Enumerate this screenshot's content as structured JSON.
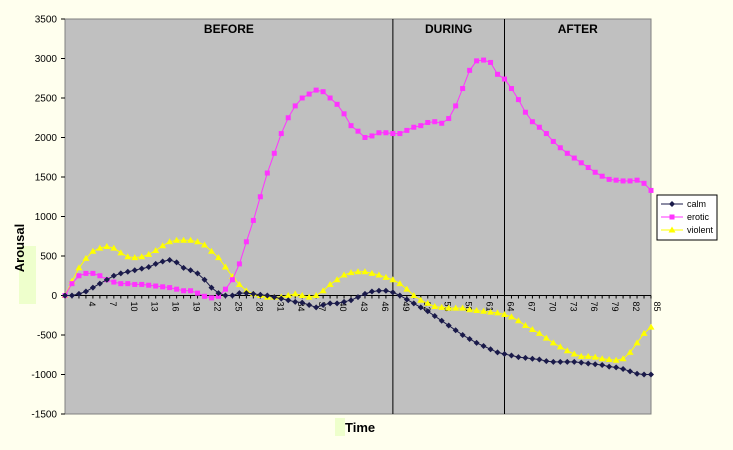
{
  "chart_data": {
    "type": "line",
    "xlabel": "Time",
    "ylabel": "Arousal",
    "ylim": [
      -1500,
      3500
    ],
    "yticks": [
      -1500,
      -1000,
      -500,
      0,
      500,
      1000,
      1500,
      2000,
      2500,
      3000,
      3500
    ],
    "x_range": [
      1,
      85
    ],
    "xticks": [
      4,
      7,
      10,
      13,
      16,
      19,
      22,
      25,
      28,
      31,
      34,
      37,
      40,
      43,
      46,
      49,
      52,
      55,
      58,
      61,
      64,
      67,
      70,
      73,
      76,
      79,
      82,
      85
    ],
    "grid": false,
    "plot_background": "#c0c0c0",
    "legend_position": "right",
    "phases": [
      {
        "label": "BEFORE",
        "start": 1,
        "end": 48
      },
      {
        "label": "DURING",
        "start": 48,
        "end": 64
      },
      {
        "label": "AFTER",
        "start": 64,
        "end": 85
      }
    ],
    "series": [
      {
        "name": "calm",
        "color": "#1a1a4a",
        "marker": "diamond",
        "x": [
          1,
          2,
          3,
          4,
          5,
          6,
          7,
          8,
          9,
          10,
          11,
          12,
          13,
          14,
          15,
          16,
          17,
          18,
          19,
          20,
          21,
          22,
          23,
          24,
          25,
          26,
          27,
          28,
          29,
          30,
          31,
          32,
          33,
          34,
          35,
          36,
          37,
          38,
          39,
          40,
          41,
          42,
          43,
          44,
          45,
          46,
          47,
          48,
          49,
          50,
          51,
          52,
          53,
          54,
          55,
          56,
          57,
          58,
          59,
          60,
          61,
          62,
          63,
          64,
          65,
          66,
          67,
          68,
          69,
          70,
          71,
          72,
          73,
          74,
          75,
          76,
          77,
          78,
          79,
          80,
          81,
          82,
          83,
          84,
          85
        ],
        "y": [
          0,
          0,
          20,
          50,
          100,
          150,
          200,
          250,
          280,
          300,
          320,
          340,
          360,
          400,
          430,
          450,
          420,
          350,
          320,
          280,
          200,
          100,
          30,
          0,
          0,
          30,
          30,
          20,
          10,
          0,
          -20,
          -40,
          -60,
          -80,
          -90,
          -120,
          -150,
          -120,
          -100,
          -100,
          -80,
          -60,
          -20,
          20,
          50,
          60,
          60,
          40,
          0,
          -50,
          -100,
          -150,
          -200,
          -260,
          -320,
          -380,
          -440,
          -500,
          -550,
          -600,
          -640,
          -680,
          -720,
          -740,
          -760,
          -780,
          -790,
          -800,
          -810,
          -830,
          -840,
          -840,
          -840,
          -840,
          -850,
          -860,
          -870,
          -880,
          -900,
          -910,
          -930,
          -960,
          -990,
          -1000,
          -1000
        ]
      },
      {
        "name": "erotic",
        "color": "#ff33ff",
        "marker": "square",
        "x": [
          1,
          2,
          3,
          4,
          5,
          6,
          7,
          8,
          9,
          10,
          11,
          12,
          13,
          14,
          15,
          16,
          17,
          18,
          19,
          20,
          21,
          22,
          23,
          24,
          25,
          26,
          27,
          28,
          29,
          30,
          31,
          32,
          33,
          34,
          35,
          36,
          37,
          38,
          39,
          40,
          41,
          42,
          43,
          44,
          45,
          46,
          47,
          48,
          49,
          50,
          51,
          52,
          53,
          54,
          55,
          56,
          57,
          58,
          59,
          60,
          61,
          62,
          63,
          64,
          65,
          66,
          67,
          68,
          69,
          70,
          71,
          72,
          73,
          74,
          75,
          76,
          77,
          78,
          79,
          80,
          81,
          82,
          83,
          84,
          85
        ],
        "y": [
          0,
          150,
          250,
          280,
          280,
          250,
          200,
          170,
          150,
          150,
          140,
          140,
          130,
          120,
          110,
          100,
          80,
          60,
          60,
          30,
          -10,
          -30,
          -10,
          80,
          200,
          400,
          680,
          950,
          1250,
          1550,
          1800,
          2050,
          2250,
          2400,
          2500,
          2550,
          2600,
          2580,
          2500,
          2420,
          2300,
          2150,
          2080,
          2000,
          2020,
          2060,
          2060,
          2050,
          2050,
          2090,
          2130,
          2150,
          2190,
          2200,
          2180,
          2240,
          2400,
          2620,
          2850,
          2970,
          2980,
          2950,
          2800,
          2740,
          2620,
          2480,
          2320,
          2200,
          2130,
          2050,
          1950,
          1870,
          1800,
          1740,
          1680,
          1620,
          1560,
          1510,
          1470,
          1460,
          1450,
          1450,
          1460,
          1420,
          1330
        ]
      },
      {
        "name": "violent",
        "color": "#ffff00",
        "marker": "triangle",
        "x": [
          1,
          2,
          3,
          4,
          5,
          6,
          7,
          8,
          9,
          10,
          11,
          12,
          13,
          14,
          15,
          16,
          17,
          18,
          19,
          20,
          21,
          22,
          23,
          24,
          25,
          26,
          27,
          28,
          29,
          30,
          31,
          32,
          33,
          34,
          35,
          36,
          37,
          38,
          39,
          40,
          41,
          42,
          43,
          44,
          45,
          46,
          47,
          48,
          49,
          50,
          51,
          52,
          53,
          54,
          55,
          56,
          57,
          58,
          59,
          60,
          61,
          62,
          63,
          64,
          65,
          66,
          67,
          68,
          69,
          70,
          71,
          72,
          73,
          74,
          75,
          76,
          77,
          78,
          79,
          80,
          81,
          82,
          83,
          84,
          85
        ],
        "y": [
          0,
          180,
          350,
          470,
          560,
          600,
          620,
          600,
          540,
          490,
          480,
          490,
          520,
          570,
          630,
          680,
          700,
          700,
          700,
          680,
          640,
          560,
          480,
          360,
          240,
          140,
          60,
          20,
          0,
          -20,
          -20,
          -20,
          0,
          20,
          0,
          -20,
          0,
          60,
          140,
          200,
          260,
          290,
          300,
          300,
          280,
          260,
          230,
          200,
          150,
          80,
          0,
          -60,
          -100,
          -140,
          -150,
          -160,
          -160,
          -160,
          -180,
          -190,
          -200,
          -210,
          -220,
          -240,
          -270,
          -320,
          -380,
          -430,
          -480,
          -540,
          -600,
          -650,
          -700,
          -740,
          -770,
          -770,
          -780,
          -800,
          -810,
          -820,
          -800,
          -720,
          -600,
          -480,
          -400
        ]
      }
    ]
  }
}
